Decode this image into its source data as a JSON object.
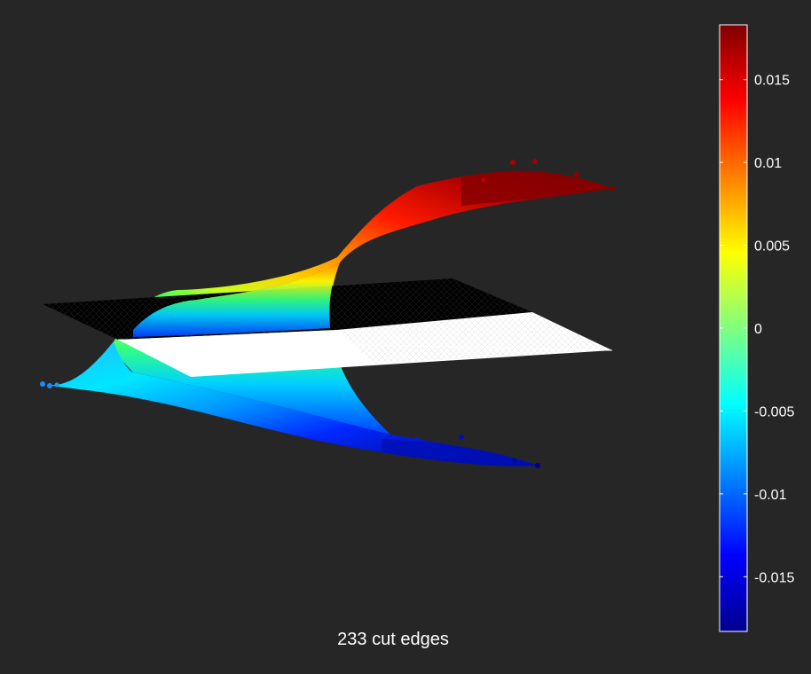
{
  "chart_data": {
    "type": "surface-3d",
    "title": "",
    "xlabel": "",
    "ylabel": "233 cut edges",
    "colormap": "jet",
    "clim": [
      -0.0183,
      0.0183
    ],
    "colorbar": {
      "ticks": [
        -0.015,
        -0.01,
        -0.005,
        0,
        0.005,
        0.01,
        0.015
      ],
      "tick_labels": [
        "-0.015",
        "-0.01",
        "-0.005",
        "0",
        "0.005",
        "0.01",
        "0.015"
      ],
      "position": "right"
    },
    "surface": {
      "description_axis_values": [
        -0.0183,
        -0.015,
        -0.01,
        -0.005,
        0,
        0.005,
        0.01,
        0.015,
        0.0183
      ]
    },
    "cut_plane": {
      "value": 0,
      "edge_count": 233
    }
  },
  "colors": {
    "background": "#262626",
    "plane_top": "#000000",
    "plane_bottom": "#ffffff",
    "text": "#ffffff"
  }
}
